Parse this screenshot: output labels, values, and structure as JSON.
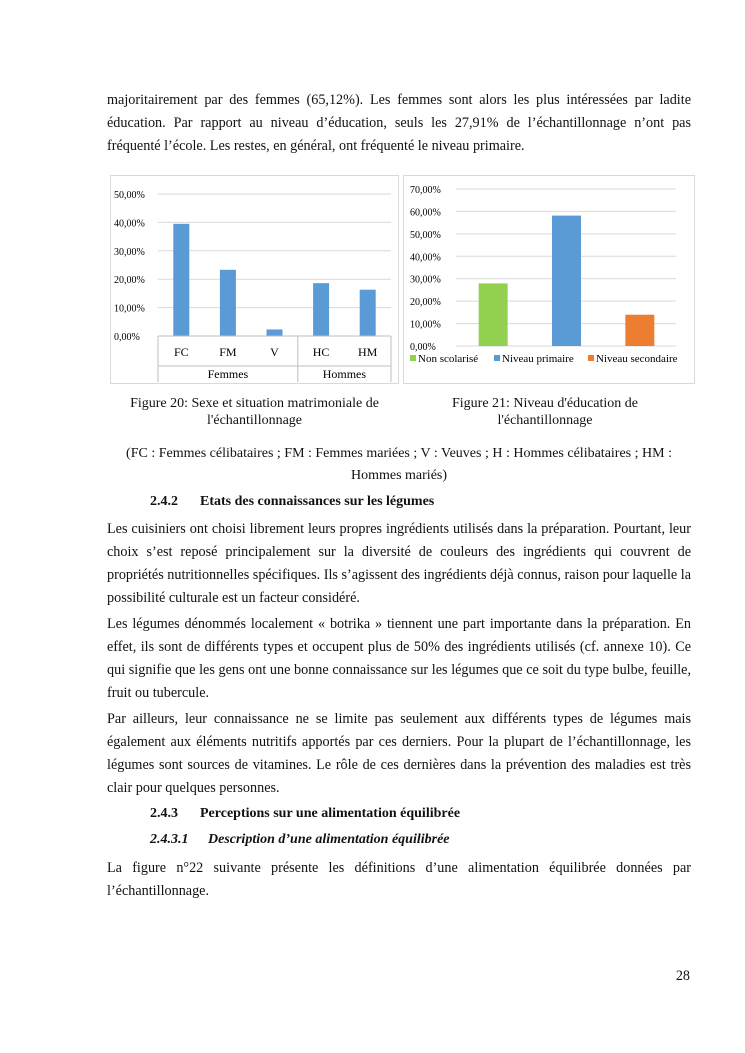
{
  "paragraphs": {
    "p1": "majoritairement par des femmes (65,12%). Les femmes sont alors les plus intéressées par ladite éducation. Par rapport au niveau d’éducation, seuls les 27,91% de l’échantillonnage n’ont pas fréquenté l’école. Les restes, en général, ont fréquenté le niveau primaire.",
    "p2": "Les cuisiniers ont choisi librement leurs propres ingrédients utilisés dans la préparation. Pourtant, leur choix s’est reposé principalement sur la diversité de couleurs des ingrédients qui couvrent de propriétés nutritionnelles spécifiques. Ils s’agissent des ingrédients déjà connus, raison pour laquelle la possibilité culturale est un facteur considéré.",
    "p3": "Les légumes dénommés localement « botrika » tiennent une part importante dans la préparation. En effet, ils sont de différents types et occupent plus de 50% des ingrédients utilisés (cf. annexe 10). Ce qui signifie que les gens ont une bonne connaissance sur les légumes que ce soit du type bulbe, feuille, fruit ou tubercule.",
    "p4": "Par ailleurs, leur connaissance ne se limite pas seulement aux différents types de légumes mais également aux éléments nutritifs apportés par ces derniers.  Pour la plupart de l’échantillonnage, les légumes sont sources de vitamines. Le rôle de ces dernières dans la prévention des maladies est très clair pour quelques personnes.",
    "p5": "La figure n°22 suivante présente les définitions d’une alimentation équilibrée données par l’échantillonnage."
  },
  "headings": {
    "h242_num": "2.4.2",
    "h242": "Etats des connaissances sur les légumes",
    "h243_num": "2.4.3",
    "h243": "Perceptions sur une alimentation équilibrée",
    "h2431_num": "2.4.3.1",
    "h2431": "Description d’une alimentation équilibrée"
  },
  "captions": {
    "fig20": "Figure 20: Sexe et situation matrimoniale de l'échantillonnage",
    "fig21": "Figure 21: Niveau d'éducation de l'échantillonnage",
    "note": "(FC : Femmes célibataires ; FM : Femmes mariées ; V : Veuves ; H : Hommes célibataires ; HM : Hommes mariés)"
  },
  "page_number": "28",
  "chart_data": [
    {
      "type": "bar",
      "categories": [
        "FC",
        "FM",
        "V",
        "HC",
        "HM"
      ],
      "groups": [
        {
          "label": "Femmes",
          "members": [
            "FC",
            "FM",
            "V"
          ]
        },
        {
          "label": "Hommes",
          "members": [
            "HC",
            "HM"
          ]
        }
      ],
      "values": [
        39.5,
        23.3,
        2.3,
        18.6,
        16.3
      ],
      "yticks": [
        "0,00%",
        "10,00%",
        "20,00%",
        "30,00%",
        "40,00%",
        "50,00%"
      ],
      "ylim": [
        0,
        50
      ],
      "grid": true,
      "color": "#5b9bd5"
    },
    {
      "type": "bar",
      "categories": [
        "Non scolarisé",
        "Niveau primaire",
        "Niveau secondaire"
      ],
      "values": [
        27.91,
        58.14,
        13.95
      ],
      "colors": [
        "#92d050",
        "#5b9bd5",
        "#ed7d31"
      ],
      "yticks": [
        "0,00%",
        "10,00%",
        "20,00%",
        "30,00%",
        "40,00%",
        "50,00%",
        "60,00%",
        "70,00%"
      ],
      "ylim": [
        0,
        70
      ],
      "grid": true,
      "legend": "bottom"
    }
  ]
}
